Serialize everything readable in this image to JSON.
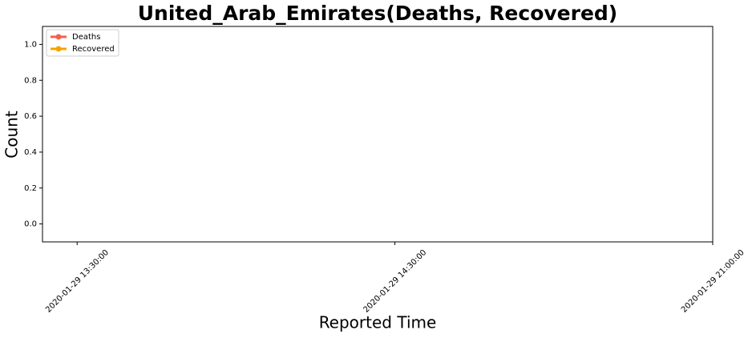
{
  "chart_data": {
    "type": "line",
    "title": "United_Arab_Emirates(Deaths, Recovered)",
    "x_label": "Reported Time",
    "y_label": "Count",
    "categories": [
      "2020-01-29 13:30:00",
      "2020-01-29 14:30:00",
      "2020-01-29 21:00:00"
    ],
    "series": [
      {
        "name": "Deaths",
        "color": "#f4614b",
        "values": [
          null,
          null,
          null
        ]
      },
      {
        "name": "Recovered",
        "color": "#f5a300",
        "values": [
          null,
          null,
          null
        ]
      }
    ],
    "ylim": [
      -0.1,
      1.1
    ],
    "yticks": [
      {
        "value": 0,
        "label": "0.0"
      },
      {
        "value": 0.2,
        "label": "0.2"
      },
      {
        "value": 0.4,
        "label": "0.4"
      },
      {
        "value": 0.6,
        "label": "0.6"
      },
      {
        "value": 0.8,
        "label": "0.8"
      },
      {
        "value": 1,
        "label": "1.0"
      }
    ],
    "legend": "upper left",
    "grid": false
  }
}
